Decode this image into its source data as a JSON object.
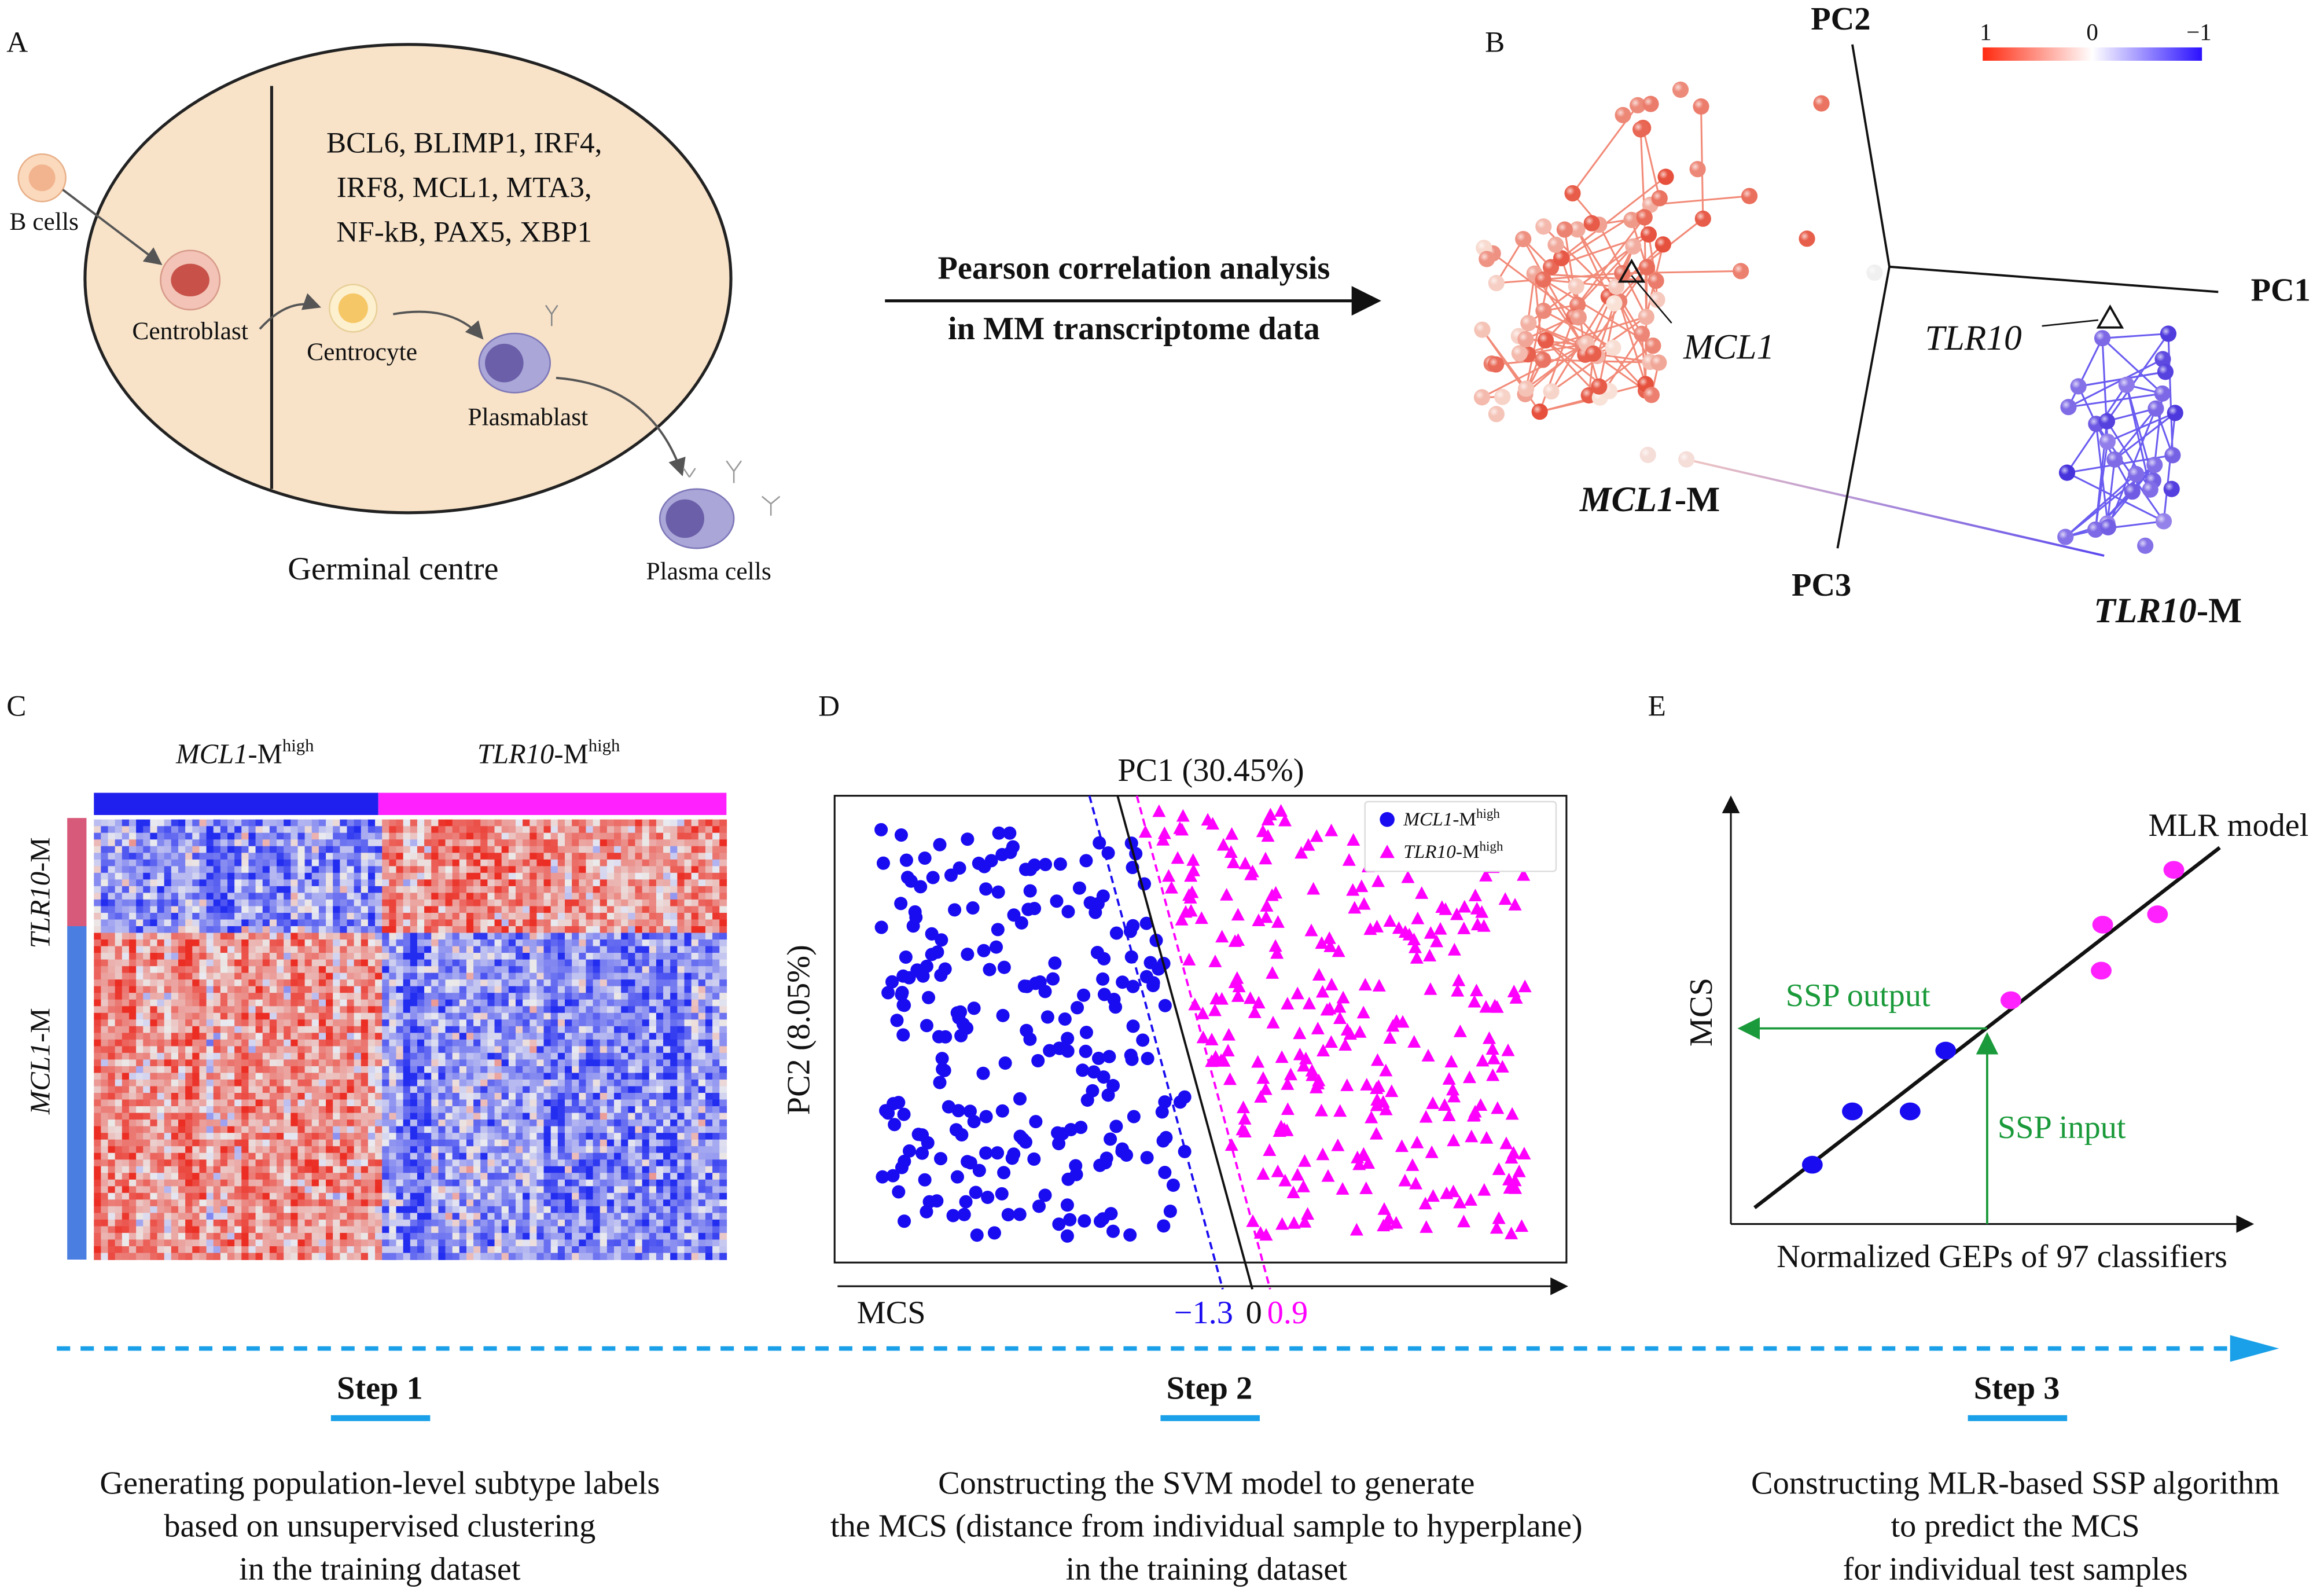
{
  "panel_a": {
    "label": "A",
    "genes": [
      "BCL6, BLIMP1, IRF4,",
      "IRF8, MCL1, MTA3,",
      "NF-kB, PAX5, XBP1"
    ],
    "cells": {
      "b_cells": "B cells",
      "centroblast": "Centroblast",
      "centrocyte": "Centrocyte",
      "plasmablast": "Plasmablast",
      "plasma_cells": "Plasma cells"
    },
    "title": "Germinal centre"
  },
  "arrow_text": {
    "line1": "Pearson correlation analysis",
    "line2": "in MM transcriptome data"
  },
  "panel_b": {
    "label": "B",
    "axes": {
      "pc1": "PC1",
      "pc2": "PC2",
      "pc3": "PC3"
    },
    "colorbar": {
      "high": "1",
      "mid": "0",
      "low": "−1",
      "high_color": "#ff2a10",
      "low_color": "#2a10ff"
    },
    "gene1": "MCL1",
    "gene2": "TLR10",
    "module1": {
      "gene": "MCL1",
      "suffix": "-M"
    },
    "module2": {
      "gene": "TLR10",
      "suffix": "-M"
    }
  },
  "panel_c": {
    "label": "C",
    "col1": {
      "gene": "MCL1",
      "suffix": "-M",
      "sup": "high"
    },
    "col2": {
      "gene": "TLR10",
      "suffix": "-M",
      "sup": "high"
    },
    "row1": {
      "gene": "TLR10",
      "suffix": "-M"
    },
    "row2": {
      "gene": "MCL1",
      "suffix": "-M"
    }
  },
  "panel_d": {
    "label": "D",
    "chart_data": {
      "type": "scatter",
      "title": "PC1 (30.45%)",
      "xlabel": "MCS",
      "ylabel": "PC2 (8.05%)",
      "legend": [
        {
          "gene": "MCL1",
          "suffix": "-M",
          "sup": "high",
          "color": "#1a0cf0",
          "marker": "circle"
        },
        {
          "gene": "TLR10",
          "suffix": "-M",
          "sup": "high",
          "color": "#ff00ff",
          "marker": "triangle"
        }
      ],
      "legend_position": "top-right",
      "thresholds": [
        {
          "label": "−1.3",
          "value": -1.3,
          "color": "#1a0cf0"
        },
        {
          "label": "0",
          "value": 0,
          "color": "#000000"
        },
        {
          "label": "0.9",
          "value": 0.9,
          "color": "#ff00ff"
        }
      ]
    }
  },
  "panel_e": {
    "label": "E",
    "model": "MLR model",
    "ylabel": "MCS",
    "xlabel": "Normalized GEPs of 97 classifiers",
    "output": "SSP output",
    "input": "SSP input"
  },
  "steps": [
    {
      "title": "Step 1",
      "lines": [
        "Generating population-level subtype labels",
        "based on unsupervised clustering",
        "in the training dataset"
      ]
    },
    {
      "title": "Step 2",
      "lines": [
        "Constructing the SVM model to generate",
        "the MCS (distance from individual sample to hyperplane)",
        "in the training dataset"
      ]
    },
    {
      "title": "Step 3",
      "lines": [
        "Constructing MLR-based SSP algorithm",
        "to predict the MCS",
        "for individual test samples"
      ]
    }
  ]
}
